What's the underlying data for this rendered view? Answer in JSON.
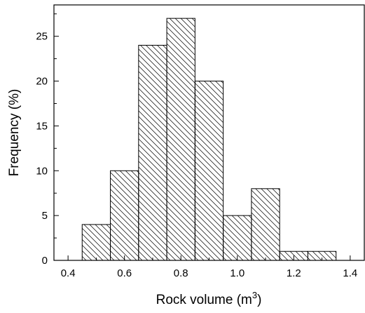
{
  "chart_data": {
    "type": "bar",
    "title": "",
    "xlabel": "Rock volume (m",
    "xlabel_superscript": "3",
    "xlabel_suffix": ")",
    "ylabel": "Frequency (%)",
    "bin_width": 0.1,
    "bin_centers": [
      0.5,
      0.6,
      0.7,
      0.8,
      0.9,
      1.0,
      1.1,
      1.2,
      1.3
    ],
    "values": [
      4,
      10,
      24,
      27,
      20,
      5,
      8,
      1,
      1
    ],
    "xlim": [
      0.35,
      1.45
    ],
    "ylim": [
      0,
      28.5
    ],
    "x_ticks": [
      "0.4",
      "0.6",
      "0.8",
      "1.0",
      "1.2",
      "1.4"
    ],
    "y_ticks": [
      "0",
      "5",
      "10",
      "15",
      "20",
      "25"
    ],
    "bar_fill": "hatched",
    "bar_color": "#000000",
    "grid": false,
    "legend": "none"
  }
}
